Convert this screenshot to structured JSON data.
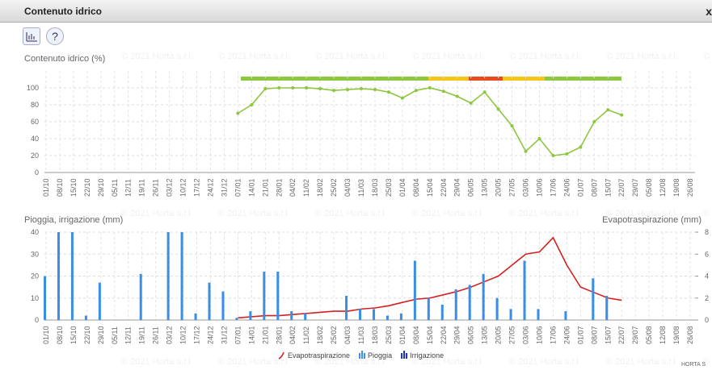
{
  "header": {
    "title": "Contenuto idrico",
    "close": "x"
  },
  "watermark": "© 2021 Horta s.r.l.",
  "logo": "HORTA S",
  "chart_data": [
    {
      "type": "line",
      "title": "Contenuto idrico (%)",
      "categories": [
        "01/10",
        "08/10",
        "15/10",
        "22/10",
        "29/10",
        "05/11",
        "12/11",
        "19/11",
        "26/11",
        "03/12",
        "10/12",
        "17/12",
        "24/12",
        "31/12",
        "07/01",
        "14/01",
        "21/01",
        "28/01",
        "04/02",
        "11/02",
        "18/02",
        "25/02",
        "04/03",
        "11/03",
        "18/03",
        "25/03",
        "01/04",
        "08/04",
        "15/04",
        "22/04",
        "29/04",
        "06/05",
        "13/05",
        "20/05",
        "27/05",
        "03/06",
        "10/06",
        "17/06",
        "24/06",
        "01/07",
        "08/07",
        "15/07",
        "22/07",
        "29/07",
        "05/08",
        "12/08",
        "19/08",
        "26/08"
      ],
      "series": [
        {
          "name": "Contenuto idrico",
          "color": "#8dc63f",
          "values": [
            null,
            null,
            null,
            null,
            null,
            null,
            null,
            null,
            null,
            null,
            null,
            null,
            null,
            null,
            70,
            80,
            99,
            100,
            100,
            100,
            99,
            97,
            98,
            99,
            98,
            95,
            88,
            97,
            100,
            96,
            90,
            82,
            95,
            75,
            55,
            25,
            40,
            20,
            22,
            30,
            60,
            74,
            68,
            null,
            null,
            null,
            null,
            null
          ]
        }
      ],
      "ylim": [
        0,
        120
      ],
      "yticks": [
        0,
        20,
        40,
        60,
        80,
        100
      ],
      "grid": true
    },
    {
      "type": "bar",
      "title": "Pioggia, irrigazione (mm)",
      "y2label": "Evapotraspirazione (mm)",
      "categories": [
        "01/10",
        "08/10",
        "15/10",
        "22/10",
        "29/10",
        "05/11",
        "12/11",
        "19/11",
        "26/11",
        "03/12",
        "10/12",
        "17/12",
        "24/12",
        "31/12",
        "07/01",
        "14/01",
        "21/01",
        "28/01",
        "04/02",
        "11/02",
        "18/02",
        "25/02",
        "04/03",
        "11/03",
        "18/03",
        "25/03",
        "01/04",
        "08/04",
        "15/04",
        "22/04",
        "29/04",
        "06/05",
        "13/05",
        "20/05",
        "27/05",
        "03/06",
        "10/06",
        "17/06",
        "24/06",
        "01/07",
        "08/07",
        "15/07",
        "22/07",
        "29/07",
        "05/08",
        "12/08",
        "19/08",
        "26/08"
      ],
      "series": [
        {
          "name": "Evapotraspirazione",
          "color": "#d62020",
          "type": "line",
          "axis": "y2",
          "values": [
            null,
            null,
            null,
            null,
            null,
            null,
            null,
            null,
            null,
            null,
            null,
            null,
            null,
            null,
            0.2,
            0.3,
            0.4,
            0.4,
            0.5,
            0.6,
            0.7,
            0.8,
            0.8,
            1.0,
            1.1,
            1.3,
            1.6,
            1.9,
            2.0,
            2.3,
            2.6,
            3.0,
            3.5,
            4.0,
            5.0,
            6.0,
            6.2,
            7.5,
            5.0,
            3.0,
            2.5,
            2.0,
            1.8,
            null,
            null,
            null,
            null,
            null
          ]
        },
        {
          "name": "Pioggia",
          "color": "#3a8ee6",
          "type": "bar",
          "values": [
            20,
            40,
            40,
            2,
            17,
            0,
            0,
            21,
            0,
            40,
            40,
            3,
            17,
            13,
            1,
            4,
            22,
            22,
            4,
            3,
            0,
            0,
            11,
            5,
            5,
            2,
            3,
            27,
            10,
            7,
            14,
            16,
            21,
            10,
            5,
            27,
            5,
            0,
            4,
            0,
            19,
            11,
            0,
            0,
            0,
            0,
            0,
            0
          ]
        },
        {
          "name": "Irrigazione",
          "color": "#1a2fb0",
          "type": "bar",
          "values": [
            0,
            0,
            0,
            0,
            0,
            0,
            0,
            0,
            0,
            0,
            0,
            0,
            0,
            0,
            0,
            0,
            0,
            0,
            0,
            0,
            0,
            0,
            0,
            0,
            0,
            0,
            0,
            0,
            0,
            0,
            0,
            0,
            0,
            0,
            0,
            0,
            0,
            0,
            0,
            0,
            0,
            0,
            0,
            0,
            0,
            0,
            0,
            0
          ]
        }
      ],
      "ylim": [
        0,
        40
      ],
      "yticks": [
        0,
        10,
        20,
        30,
        40
      ],
      "y2lim": [
        0,
        8
      ],
      "y2ticks": [
        0,
        2,
        4,
        6,
        8
      ],
      "grid": true
    }
  ]
}
